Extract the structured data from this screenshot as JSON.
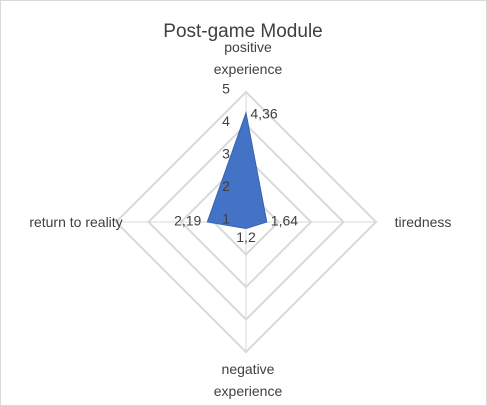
{
  "chart_data": {
    "type": "radar",
    "title": "Post-game Module",
    "categories": [
      "positive experience",
      "tiredness",
      "negative experience",
      "return to reality"
    ],
    "values": [
      4.36,
      1.64,
      1.2,
      2.19
    ],
    "value_labels": [
      "4,36",
      "1,64",
      "1,2",
      "2,19"
    ],
    "color": "#4472c4",
    "ylim": [
      1,
      5
    ],
    "yticks": [
      1,
      2,
      3,
      4,
      5
    ],
    "grid": true
  }
}
